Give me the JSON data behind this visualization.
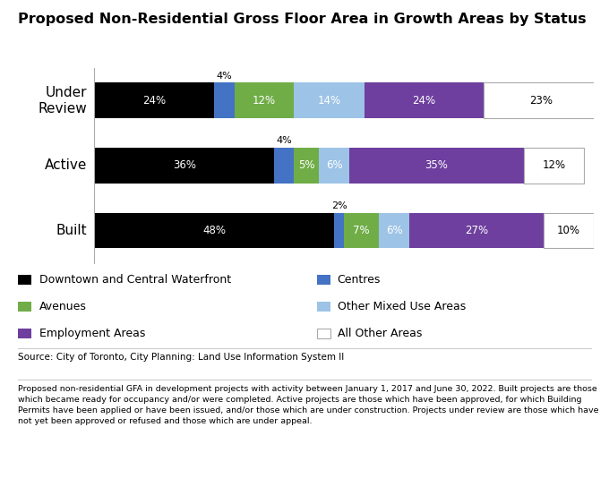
{
  "title": "Proposed Non-Residential Gross Floor Area in Growth Areas by Status",
  "categories": [
    "Built",
    "Active",
    "Under\nReview"
  ],
  "segment_names": [
    "Downtown and Central Waterfront",
    "Centres",
    "Avenues",
    "Other Mixed Use Areas",
    "Employment Areas",
    "All Other Areas"
  ],
  "segment_values": {
    "Downtown and Central Waterfront": [
      48,
      36,
      24
    ],
    "Centres": [
      2,
      4,
      4
    ],
    "Avenues": [
      7,
      5,
      12
    ],
    "Other Mixed Use Areas": [
      6,
      6,
      14
    ],
    "Employment Areas": [
      27,
      35,
      24
    ],
    "All Other Areas": [
      10,
      12,
      23
    ]
  },
  "segment_colors": {
    "Downtown and Central Waterfront": "#000000",
    "Centres": "#4472C4",
    "Avenues": "#70AD47",
    "Other Mixed Use Areas": "#9DC3E6",
    "Employment Areas": "#6E3F9E",
    "All Other Areas": "#FFFFFF"
  },
  "bar_height": 0.55,
  "source_text": "Source: City of Toronto, City Planning: Land Use Information System II",
  "footnote_text": "Proposed non-residential GFA in development projects with activity between January 1, 2017 and June 30, 2022. Built projects are those\nwhich became ready for occupancy and/or were completed. Active projects are those which have been approved, for which Building\nPermits have been applied or have been issued, and/or those which are under construction. Projects under review are those which have\nnot yet been approved or refused and those which are under appeal.",
  "legend_left": [
    [
      "Downtown and Central Waterfront",
      "#000000"
    ],
    [
      "Avenues",
      "#70AD47"
    ],
    [
      "Employment Areas",
      "#6E3F9E"
    ]
  ],
  "legend_right": [
    [
      "Centres",
      "#4472C4"
    ],
    [
      "Other Mixed Use Areas",
      "#9DC3E6"
    ],
    [
      "All Other Areas",
      "#FFFFFF"
    ]
  ]
}
